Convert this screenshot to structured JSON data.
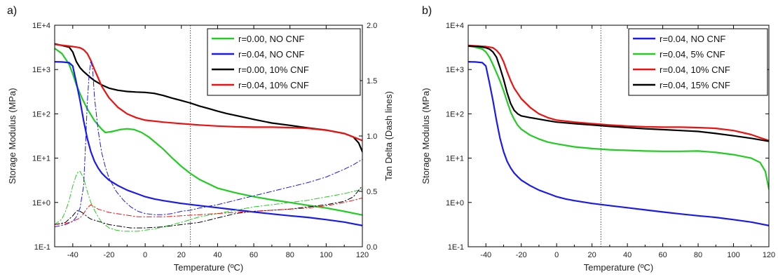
{
  "colors": {
    "green": "#22cc22",
    "blue": "#1a1aee",
    "black": "#000000",
    "red": "#ee1111"
  },
  "chart_data": [
    {
      "panel_label": "a)",
      "type": "line",
      "xlabel": "Temperature (ºC)",
      "ylabel": "Storage Modulus (MPa)",
      "y2label": "Tan Delta (Dash lines)",
      "xlim": [
        -50,
        120
      ],
      "ylim": [
        0.1,
        10000
      ],
      "yscale": "log",
      "y2lim": [
        0,
        2
      ],
      "xticks": [
        -40,
        -20,
        0,
        20,
        40,
        60,
        80,
        100,
        120
      ],
      "yticks": [
        0.1,
        1,
        10,
        100,
        1000,
        10000
      ],
      "ytick_labels": [
        "1E-1",
        "1E+0",
        "1E+1",
        "1E+2",
        "1E+3",
        "1E+4"
      ],
      "y2ticks": [
        0,
        0.5,
        1,
        1.5,
        2
      ],
      "y2tick_labels": [
        "0.0",
        "0.5",
        "1.0",
        "1.5",
        "2.0"
      ],
      "vline_x": 25,
      "legend_position": "top-right",
      "series": [
        {
          "name": "r=0.00, NO CNF",
          "color": "green",
          "axis": "y",
          "style": "solid",
          "x": [
            -50,
            -46,
            -42,
            -40,
            -38,
            -35,
            -32,
            -28,
            -24,
            -22,
            -18,
            -14,
            -10,
            -6,
            -2,
            2,
            6,
            10,
            15,
            20,
            25,
            30,
            40,
            50,
            60,
            70,
            80,
            90,
            100,
            110,
            120
          ],
          "y": [
            3000,
            2300,
            1300,
            800,
            450,
            230,
            130,
            70,
            45,
            38,
            40,
            44,
            46,
            44,
            38,
            30,
            22,
            16,
            10,
            6.5,
            4.5,
            3.3,
            2.1,
            1.65,
            1.35,
            1.15,
            1,
            0.86,
            0.75,
            0.63,
            0.52
          ]
        },
        {
          "name": "r=0.04, NO CNF",
          "color": "blue",
          "axis": "y",
          "style": "solid",
          "x": [
            -50,
            -46,
            -42,
            -40,
            -38,
            -36,
            -34,
            -32,
            -30,
            -28,
            -26,
            -24,
            -22,
            -20,
            -15,
            -10,
            -5,
            0,
            5,
            10,
            20,
            30,
            40,
            50,
            60,
            70,
            80,
            90,
            100,
            110,
            120
          ],
          "y": [
            1500,
            1480,
            1430,
            1200,
            500,
            200,
            70,
            28,
            14,
            8.5,
            6,
            4.6,
            3.8,
            3.2,
            2.4,
            1.9,
            1.6,
            1.35,
            1.2,
            1.1,
            0.95,
            0.85,
            0.76,
            0.68,
            0.61,
            0.55,
            0.5,
            0.46,
            0.41,
            0.36,
            0.3
          ]
        },
        {
          "name": "r=0.00, 10% CNF",
          "color": "black",
          "axis": "y",
          "style": "solid",
          "x": [
            -50,
            -46,
            -42,
            -40,
            -38,
            -36,
            -34,
            -32,
            -30,
            -28,
            -24,
            -20,
            -15,
            -10,
            -5,
            0,
            5,
            10,
            15,
            20,
            25,
            30,
            35,
            40,
            45,
            50,
            60,
            70,
            80,
            90,
            100,
            110,
            115,
            118,
            120
          ],
          "y": [
            3800,
            3500,
            3200,
            2500,
            1500,
            1100,
            900,
            760,
            650,
            560,
            450,
            380,
            340,
            320,
            310,
            305,
            290,
            260,
            225,
            200,
            175,
            150,
            132,
            115,
            102,
            92,
            75,
            62,
            55,
            48,
            43,
            36,
            30,
            22,
            14
          ]
        },
        {
          "name": "r=0.04, 10% CNF",
          "color": "red",
          "axis": "y",
          "style": "solid",
          "x": [
            -50,
            -45,
            -40,
            -36,
            -34,
            -32,
            -30,
            -28,
            -26,
            -24,
            -20,
            -15,
            -10,
            -5,
            0,
            10,
            20,
            30,
            40,
            50,
            60,
            70,
            80,
            90,
            100,
            110,
            115,
            120
          ],
          "y": [
            3700,
            3500,
            3300,
            3100,
            2800,
            2300,
            1600,
            1000,
            650,
            420,
            230,
            140,
            100,
            82,
            72,
            65,
            60,
            56,
            53,
            51,
            50,
            50,
            49,
            47,
            43,
            36,
            30,
            25
          ]
        },
        {
          "name": "r=0.00, NO CNF tan delta",
          "color": "green",
          "axis": "y2",
          "style": "dashdot",
          "x": [
            -50,
            -46,
            -44,
            -42,
            -40,
            -38,
            -37,
            -36,
            -34,
            -32,
            -30,
            -28,
            -26,
            -24,
            -20,
            -16,
            -12,
            -8,
            -4,
            0,
            5,
            10,
            20,
            30,
            40,
            50,
            60,
            70,
            80,
            90,
            100,
            110,
            120
          ],
          "y": [
            0.2,
            0.25,
            0.32,
            0.42,
            0.55,
            0.65,
            0.68,
            0.68,
            0.62,
            0.5,
            0.4,
            0.33,
            0.27,
            0.22,
            0.17,
            0.15,
            0.14,
            0.14,
            0.14,
            0.15,
            0.16,
            0.18,
            0.22,
            0.27,
            0.3,
            0.33,
            0.36,
            0.38,
            0.4,
            0.42,
            0.45,
            0.48,
            0.52
          ]
        },
        {
          "name": "r=0.04, NO CNF tan delta",
          "color": "blue",
          "axis": "y2",
          "style": "dashdot",
          "x": [
            -50,
            -44,
            -40,
            -38,
            -36,
            -34,
            -33,
            -32,
            -31,
            -30,
            -29,
            -28,
            -26,
            -24,
            -22,
            -20,
            -16,
            -12,
            -8,
            -4,
            0,
            5,
            10,
            15,
            20,
            25,
            30,
            40,
            50,
            60,
            70,
            80,
            90,
            100,
            110,
            115,
            120
          ],
          "y": [
            0.18,
            0.2,
            0.23,
            0.27,
            0.35,
            0.55,
            0.9,
            1.3,
            1.55,
            1.68,
            1.6,
            1.35,
            1.05,
            0.85,
            0.72,
            0.62,
            0.5,
            0.42,
            0.36,
            0.32,
            0.3,
            0.29,
            0.29,
            0.3,
            0.32,
            0.33,
            0.35,
            0.38,
            0.42,
            0.46,
            0.5,
            0.54,
            0.58,
            0.63,
            0.7,
            0.74,
            0.79
          ]
        },
        {
          "name": "r=0.00, 10% CNF tan delta",
          "color": "black",
          "axis": "y2",
          "style": "dashdot",
          "x": [
            -50,
            -44,
            -40,
            -38,
            -37,
            -36,
            -34,
            -32,
            -30,
            -28,
            -26,
            -24,
            -20,
            -16,
            -12,
            -8,
            -4,
            0,
            10,
            20,
            30,
            40,
            50,
            60,
            70,
            80,
            90,
            100,
            110,
            115,
            120
          ],
          "y": [
            0.2,
            0.22,
            0.28,
            0.32,
            0.33,
            0.32,
            0.3,
            0.27,
            0.25,
            0.24,
            0.23,
            0.22,
            0.2,
            0.19,
            0.18,
            0.17,
            0.17,
            0.17,
            0.18,
            0.2,
            0.22,
            0.26,
            0.3,
            0.32,
            0.33,
            0.34,
            0.36,
            0.38,
            0.41,
            0.45,
            0.55
          ]
        },
        {
          "name": "r=0.04, 10% CNF tan delta",
          "color": "red",
          "axis": "y2",
          "style": "dashdot",
          "x": [
            -50,
            -44,
            -40,
            -36,
            -34,
            -32,
            -30,
            -28,
            -26,
            -24,
            -20,
            -16,
            -12,
            -8,
            -4,
            0,
            10,
            20,
            30,
            40,
            50,
            60,
            70,
            80,
            90,
            100,
            110,
            120
          ],
          "y": [
            0.2,
            0.21,
            0.23,
            0.26,
            0.3,
            0.35,
            0.38,
            0.36,
            0.34,
            0.33,
            0.31,
            0.3,
            0.29,
            0.28,
            0.27,
            0.27,
            0.27,
            0.28,
            0.29,
            0.3,
            0.31,
            0.32,
            0.33,
            0.34,
            0.35,
            0.37,
            0.4,
            0.44
          ]
        }
      ]
    },
    {
      "panel_label": "b)",
      "type": "line",
      "xlabel": "Temperature (ºC)",
      "ylabel": "Storage Modulus (MPa)",
      "xlim": [
        -50,
        120
      ],
      "ylim": [
        0.1,
        10000
      ],
      "yscale": "log",
      "xticks": [
        -40,
        -20,
        0,
        20,
        40,
        60,
        80,
        100,
        120
      ],
      "yticks": [
        0.1,
        1,
        10,
        100,
        1000,
        10000
      ],
      "ytick_labels": [
        "1E-1",
        "1E+0",
        "1E+1",
        "1E+2",
        "1E+3",
        "1E+4"
      ],
      "vline_x": 25,
      "legend_position": "top-right",
      "series": [
        {
          "name": "r=0.04, NO CNF",
          "color": "blue",
          "axis": "y",
          "style": "solid",
          "x": [
            -50,
            -46,
            -42,
            -40,
            -38,
            -36,
            -34,
            -32,
            -30,
            -28,
            -26,
            -24,
            -22,
            -20,
            -15,
            -10,
            -5,
            0,
            5,
            10,
            20,
            30,
            40,
            50,
            60,
            70,
            80,
            90,
            100,
            110,
            120
          ],
          "y": [
            1500,
            1480,
            1430,
            1200,
            500,
            200,
            70,
            28,
            14,
            8.5,
            6,
            4.6,
            3.8,
            3.2,
            2.4,
            1.9,
            1.6,
            1.35,
            1.2,
            1.1,
            0.95,
            0.85,
            0.76,
            0.68,
            0.61,
            0.55,
            0.5,
            0.46,
            0.41,
            0.36,
            0.3
          ]
        },
        {
          "name": "r=0.04, 5% CNF",
          "color": "green",
          "axis": "y",
          "style": "solid",
          "x": [
            -50,
            -46,
            -42,
            -40,
            -38,
            -36,
            -34,
            -32,
            -30,
            -28,
            -26,
            -24,
            -22,
            -20,
            -15,
            -10,
            -5,
            0,
            10,
            20,
            30,
            40,
            50,
            60,
            70,
            80,
            90,
            100,
            110,
            115,
            118,
            120
          ],
          "y": [
            3400,
            3200,
            2900,
            2500,
            1900,
            1300,
            850,
            550,
            330,
            190,
            110,
            75,
            55,
            45,
            33,
            27,
            23,
            21,
            18,
            16.5,
            15.5,
            15,
            14.5,
            14.3,
            14.3,
            14.5,
            13.5,
            12,
            10,
            8,
            5,
            2
          ]
        },
        {
          "name": "r=0.04, 10% CNF",
          "color": "red",
          "axis": "y",
          "style": "solid",
          "x": [
            -50,
            -45,
            -40,
            -36,
            -34,
            -32,
            -30,
            -28,
            -26,
            -24,
            -20,
            -15,
            -10,
            -5,
            0,
            10,
            20,
            30,
            40,
            50,
            60,
            70,
            80,
            90,
            100,
            110,
            115,
            120
          ],
          "y": [
            3500,
            3400,
            3300,
            3100,
            2700,
            2200,
            1500,
            900,
            560,
            380,
            220,
            140,
            100,
            82,
            72,
            65,
            60,
            56,
            53,
            51,
            50,
            50,
            49,
            47,
            42,
            34,
            29,
            25
          ]
        },
        {
          "name": "r=0.04, 15% CNF",
          "color": "black",
          "axis": "y",
          "style": "solid",
          "x": [
            -50,
            -44,
            -40,
            -38,
            -36,
            -34,
            -32,
            -30,
            -28,
            -26,
            -24,
            -22,
            -20,
            -15,
            -10,
            -5,
            0,
            10,
            20,
            30,
            40,
            50,
            60,
            70,
            80,
            90,
            100,
            110,
            120
          ],
          "y": [
            3400,
            3300,
            3100,
            2900,
            2500,
            1900,
            1100,
            600,
            300,
            170,
            120,
            100,
            90,
            82,
            76,
            70,
            65,
            60,
            56,
            52,
            49,
            46,
            44,
            42,
            40,
            36,
            32,
            28,
            24
          ]
        }
      ]
    }
  ]
}
